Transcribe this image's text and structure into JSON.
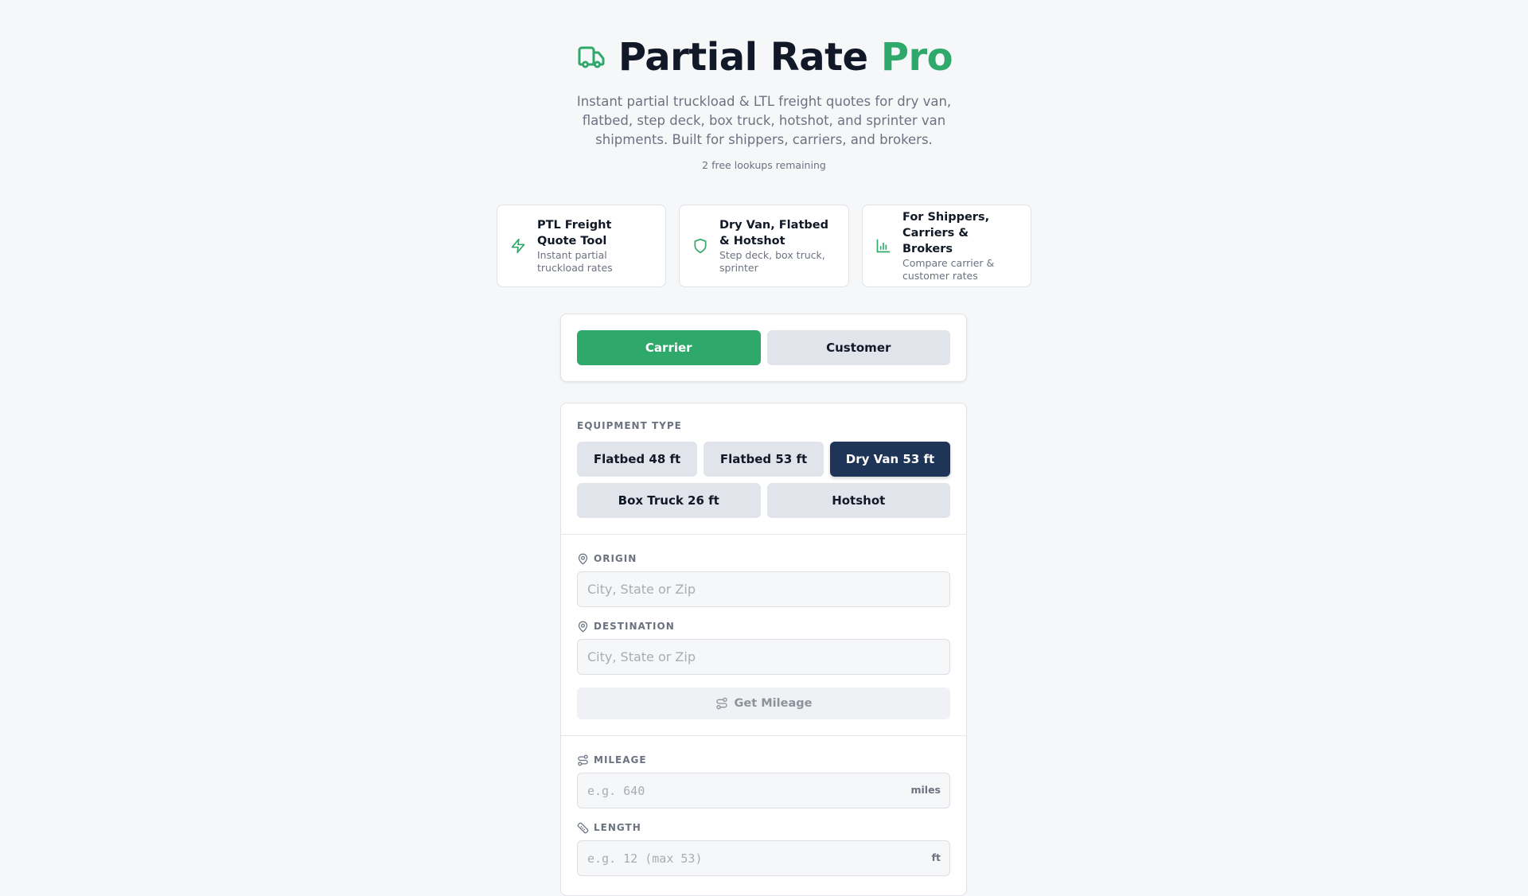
{
  "header": {
    "title_main": "Partial Rate",
    "title_accent": "Pro",
    "subtitle": "Instant partial truckload & LTL freight quotes for dry van, flatbed, step deck, box truck, hotshot, and sprinter van shipments. Built for shippers, carriers, and brokers.",
    "remaining": "2 free lookups remaining"
  },
  "features": [
    {
      "icon": "lightning-icon",
      "title": "PTL Freight Quote Tool",
      "desc": "Instant partial truckload rates"
    },
    {
      "icon": "shield-icon",
      "title": "Dry Van, Flatbed & Hotshot",
      "desc": "Step deck, box truck, sprinter"
    },
    {
      "icon": "bar-chart-icon",
      "title": "For Shippers, Carriers & Brokers",
      "desc": "Compare carrier & customer rates"
    }
  ],
  "mode": {
    "carrier": "Carrier",
    "customer": "Customer",
    "selected": "Carrier"
  },
  "equipment": {
    "label": "EQUIPMENT TYPE",
    "options": [
      "Flatbed 48 ft",
      "Flatbed 53 ft",
      "Dry Van 53 ft",
      "Box Truck 26 ft",
      "Hotshot"
    ],
    "selected": "Dry Van 53 ft"
  },
  "route": {
    "origin_label": "ORIGIN",
    "origin_placeholder": "City, State or Zip",
    "destination_label": "DESTINATION",
    "destination_placeholder": "City, State or Zip",
    "get_mileage": "Get Mileage"
  },
  "details": {
    "mileage_label": "MILEAGE",
    "mileage_placeholder": "e.g. 640",
    "mileage_unit": "miles",
    "length_label": "LENGTH",
    "length_placeholder": "e.g. 12 (max 53)",
    "length_unit": "ft"
  },
  "colors": {
    "accent": "#2ea86b",
    "selected_equipment": "#1e3557",
    "background": "#f6f7f9"
  }
}
